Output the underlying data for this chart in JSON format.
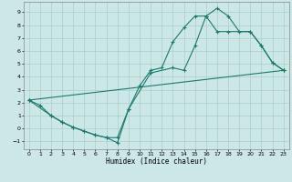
{
  "xlabel": "Humidex (Indice chaleur)",
  "bg_color": "#cce8e6",
  "grid_color": "#aacfcc",
  "line_color": "#1a7a6e",
  "xlim": [
    -0.5,
    23.5
  ],
  "ylim": [
    -1.6,
    9.8
  ],
  "xticks": [
    0,
    1,
    2,
    3,
    4,
    5,
    6,
    7,
    8,
    9,
    10,
    11,
    12,
    13,
    14,
    15,
    16,
    17,
    18,
    19,
    20,
    21,
    22,
    23
  ],
  "yticks": [
    -1,
    0,
    1,
    2,
    3,
    4,
    5,
    6,
    7,
    8,
    9
  ],
  "line1_x": [
    0,
    1,
    2,
    3,
    4,
    5,
    6,
    7,
    8,
    9,
    10,
    11,
    12,
    13,
    14,
    15,
    16,
    17,
    18,
    19,
    20,
    21,
    22,
    23
  ],
  "line1_y": [
    2.2,
    1.8,
    1.0,
    0.5,
    0.1,
    -0.2,
    -0.5,
    -0.7,
    -1.1,
    1.5,
    3.3,
    4.5,
    4.7,
    6.7,
    7.8,
    8.7,
    8.7,
    9.3,
    8.7,
    7.5,
    7.5,
    6.4,
    5.1,
    4.5
  ],
  "line2_x": [
    0,
    2,
    3,
    4,
    5,
    6,
    7,
    8,
    9,
    11,
    13,
    14,
    15,
    16,
    17,
    18,
    20,
    21,
    22,
    23
  ],
  "line2_y": [
    2.2,
    1.0,
    0.5,
    0.1,
    -0.2,
    -0.5,
    -0.7,
    -0.7,
    1.5,
    4.3,
    4.7,
    4.5,
    6.4,
    8.7,
    7.5,
    7.5,
    7.5,
    6.4,
    5.1,
    4.5
  ],
  "line3_x": [
    0,
    23
  ],
  "line3_y": [
    2.2,
    4.5
  ]
}
